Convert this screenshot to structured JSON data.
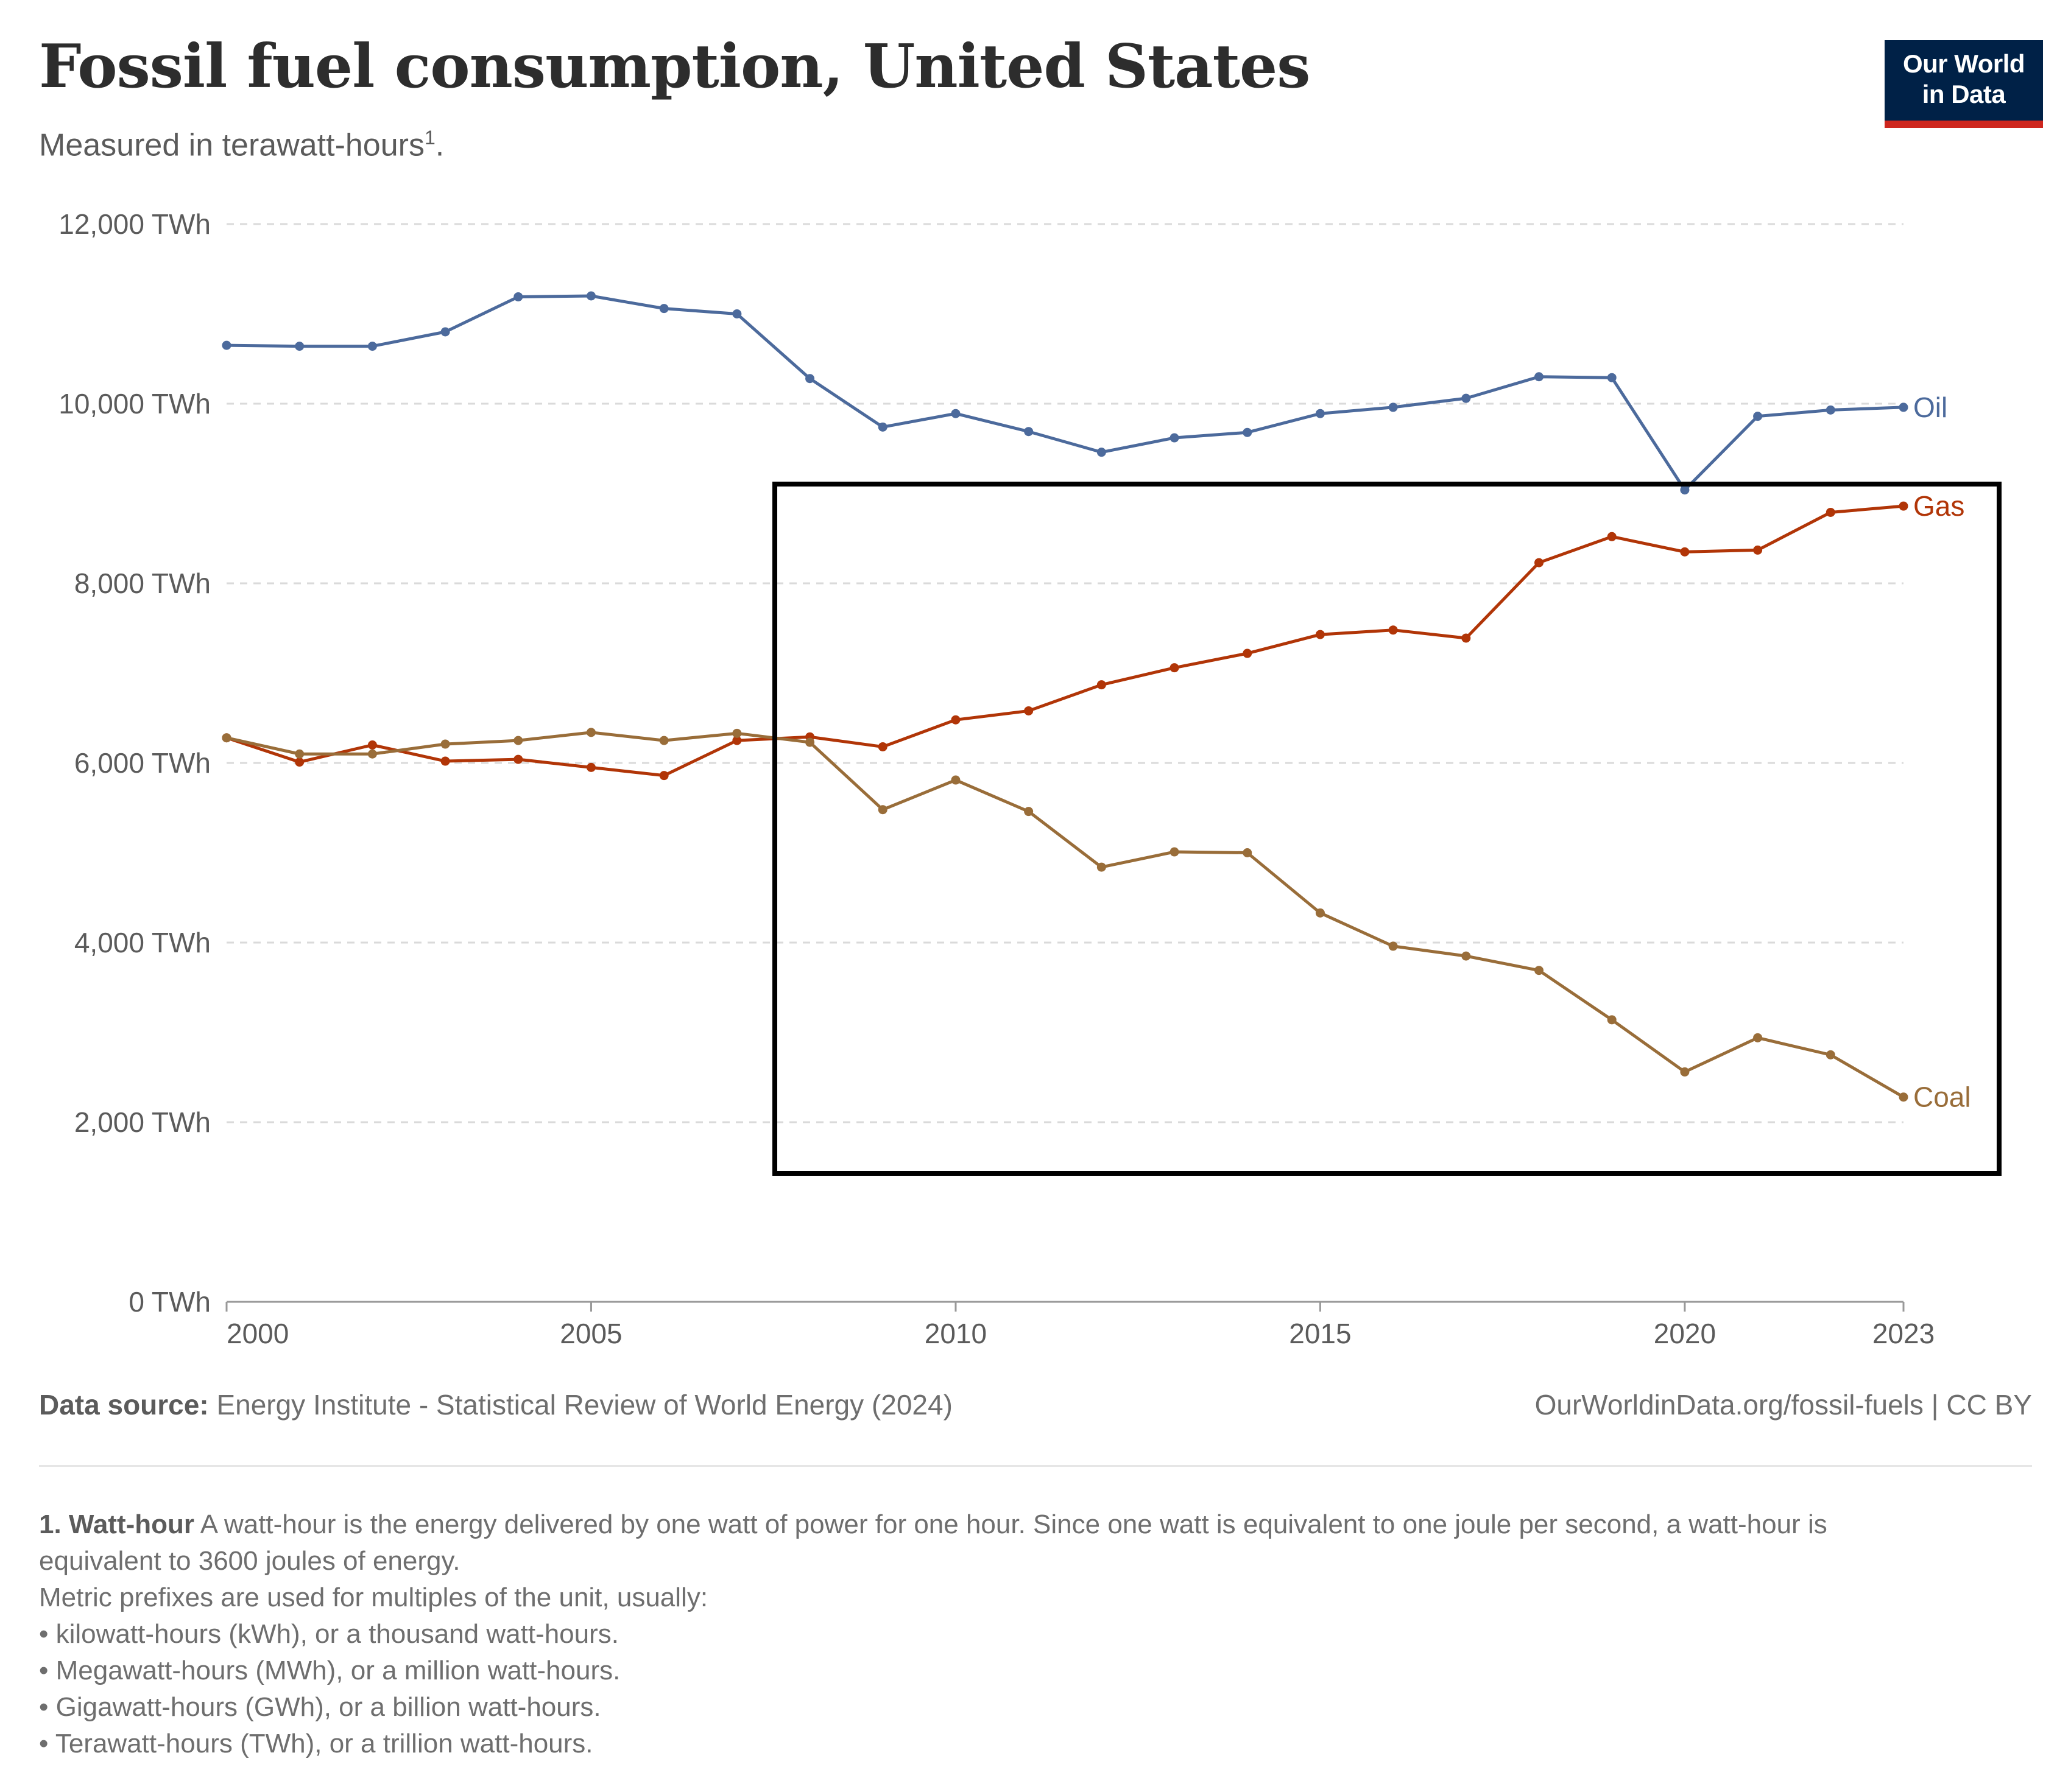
{
  "header": {
    "title": "Fossil fuel consumption, United States",
    "subtitle": "Measured in terawatt-hours",
    "subtitle_sup": "1",
    "subtitle_end": ".",
    "logo_line1": "Our World",
    "logo_line2": "in Data"
  },
  "chart_data": {
    "type": "line",
    "title": "Fossil fuel consumption, United States",
    "subtitle": "Measured in terawatt-hours¹.",
    "xlim": [
      2000,
      2023
    ],
    "ylim": [
      0,
      12000
    ],
    "y_ticks": [
      0,
      2000,
      4000,
      6000,
      8000,
      10000,
      12000
    ],
    "y_tick_labels": [
      "0 TWh",
      "2,000 TWh",
      "4,000 TWh",
      "6,000 TWh",
      "8,000 TWh",
      "10,000 TWh",
      "12,000 TWh"
    ],
    "x_ticks": [
      2000,
      2005,
      2010,
      2015,
      2020,
      2023
    ],
    "x_tick_labels": [
      "2000",
      "2005",
      "2010",
      "2015",
      "2020",
      "2023"
    ],
    "grid": "horizontal dashed",
    "legend": "line-end labels on right",
    "x": [
      2000,
      2001,
      2002,
      2003,
      2004,
      2005,
      2006,
      2007,
      2008,
      2009,
      2010,
      2011,
      2012,
      2013,
      2014,
      2015,
      2016,
      2017,
      2018,
      2019,
      2020,
      2021,
      2022,
      2023
    ],
    "series": [
      {
        "name": "Oil",
        "color": "#4c6a9c",
        "values": [
          10650,
          10640,
          10640,
          10800,
          11190,
          11200,
          11060,
          11000,
          10280,
          9740,
          9890,
          9690,
          9460,
          9620,
          9680,
          9890,
          9960,
          10060,
          10300,
          10290,
          9040,
          9860,
          9930,
          9960
        ]
      },
      {
        "name": "Gas",
        "color": "#b13507",
        "values": [
          6280,
          6010,
          6200,
          6020,
          6040,
          5950,
          5860,
          6250,
          6290,
          6180,
          6480,
          6580,
          6870,
          7060,
          7220,
          7430,
          7480,
          7390,
          8230,
          8520,
          8350,
          8370,
          8790,
          8860
        ]
      },
      {
        "name": "Coal",
        "color": "#996d39",
        "values": [
          6280,
          6100,
          6100,
          6210,
          6250,
          6340,
          6250,
          6330,
          6230,
          5480,
          5810,
          5460,
          4840,
          5010,
          5000,
          4330,
          3960,
          3850,
          3690,
          3140,
          2560,
          2940,
          2750,
          2280
        ]
      }
    ],
    "annotation": "rectangle highlighting 2008–2023"
  },
  "footer": {
    "source_label": "Data source:",
    "source_text": "Energy Institute - Statistical Review of World Energy (2024)",
    "url": "OurWorldinData.org/fossil-fuels | CC BY",
    "note_title": "1. Watt-hour",
    "note_text": "A watt-hour is the energy delivered by one watt of power for one hour. Since one watt is equivalent to one joule per second, a watt-hour is equivalent to 3600 joules of energy.",
    "note_line2": "Metric prefixes are used for multiples of the unit, usually:",
    "bullets": [
      "• kilowatt-hours (kWh), or a thousand watt-hours.",
      "• Megawatt-hours (MWh), or a million watt-hours.",
      "• Gigawatt-hours (GWh), or a billion watt-hours.",
      "• Terawatt-hours (TWh), or a trillion watt-hours."
    ]
  }
}
